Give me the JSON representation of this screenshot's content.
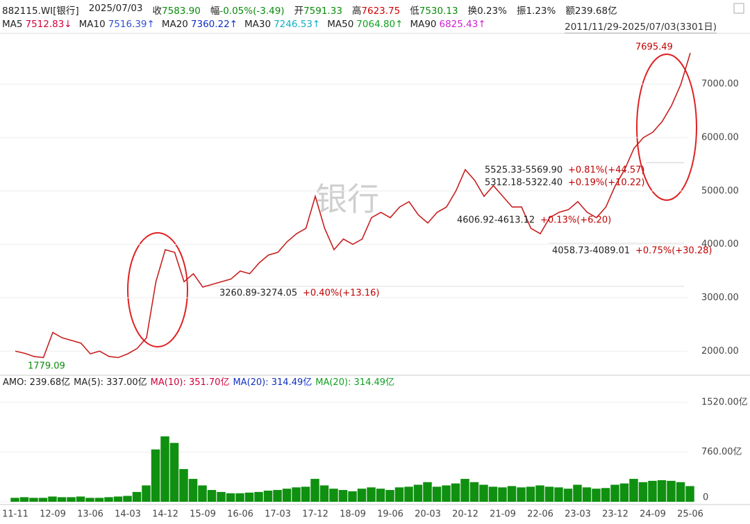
{
  "header": {
    "code": "882115.WI[银行]",
    "date": "2025/07/03",
    "fields": [
      {
        "label": "收",
        "value": "7583.90",
        "color": "#0a8a0a"
      },
      {
        "label": "幅",
        "value": "-0.05%(-3.49)",
        "color": "#0a8a0a"
      },
      {
        "label": "开",
        "value": "7591.33",
        "color": "#0a8a0a"
      },
      {
        "label": "高",
        "value": "7623.75",
        "color": "#d00000"
      },
      {
        "label": "低",
        "value": "7530.13",
        "color": "#0a8a0a"
      },
      {
        "label": "换",
        "value": "0.23%",
        "color": "#222222"
      },
      {
        "label": "振",
        "value": "1.23%",
        "color": "#222222"
      },
      {
        "label": "额",
        "value": "239.68亿",
        "color": "#222222"
      }
    ],
    "ma": [
      {
        "label": "MA5",
        "value": "7512.83↓",
        "color": "#d0003a"
      },
      {
        "label": "MA10",
        "value": "7516.39↑",
        "color": "#3050d0"
      },
      {
        "label": "MA20",
        "value": "7360.22↑",
        "color": "#1030c0"
      },
      {
        "label": "MA30",
        "value": "7246.53↑",
        "color": "#10b0c0"
      },
      {
        "label": "MA50",
        "value": "7064.80↑",
        "color": "#10a020"
      },
      {
        "label": "MA90",
        "value": "6825.43↑",
        "color": "#d020d0"
      }
    ],
    "range": "2011/11/29-2025/07/03(3301日)",
    "watermark": "银行"
  },
  "chart_data": [
    {
      "type": "line",
      "categories": [
        "11-11",
        null,
        null,
        null,
        "12-09",
        null,
        null,
        null,
        "13-06",
        null,
        null,
        null,
        "14-03",
        null,
        null,
        null,
        "14-12",
        null,
        null,
        null,
        "15-09",
        null,
        null,
        null,
        "16-06",
        null,
        null,
        null,
        "17-03",
        null,
        null,
        null,
        "17-12",
        null,
        null,
        null,
        "18-09",
        null,
        null,
        null,
        "19-06",
        null,
        null,
        null,
        "20-03",
        null,
        null,
        null,
        "20-12",
        null,
        null,
        null,
        "21-09",
        null,
        null,
        null,
        "22-06",
        null,
        null,
        null,
        "23-03",
        null,
        null,
        null,
        "23-12",
        null,
        null,
        null,
        "24-09",
        null,
        null,
        null,
        "25-06"
      ],
      "series": [
        {
          "name": "收",
          "color": "#c81e1e",
          "values": [
            2000,
            1960,
            1900,
            1880,
            2350,
            2250,
            2200,
            2150,
            1950,
            2000,
            1900,
            1880,
            1950,
            2050,
            2250,
            3300,
            3900,
            3850,
            3300,
            3450,
            3200,
            3250,
            3300,
            3350,
            3500,
            3450,
            3650,
            3800,
            3850,
            4050,
            4200,
            4300,
            4900,
            4300,
            3900,
            4100,
            4000,
            4100,
            4500,
            4600,
            4500,
            4700,
            4800,
            4550,
            4400,
            4600,
            4700,
            5000,
            5400,
            5200,
            4900,
            5100,
            4900,
            4700,
            4700,
            4300,
            4200,
            4500,
            4600,
            4650,
            4800,
            4600,
            4500,
            4700,
            5100,
            5400,
            5800,
            6000,
            6100,
            6300,
            6600,
            7000,
            7583.9
          ]
        }
      ],
      "ylim": [
        1600,
        7900
      ],
      "yticks": [
        {
          "value": 2000,
          "label": "2000.00"
        },
        {
          "value": 3000,
          "label": "3000.00"
        },
        {
          "value": 4000,
          "label": "4000.00"
        },
        {
          "value": 5000,
          "label": "5000.00"
        },
        {
          "value": 6000,
          "label": "6000.00"
        },
        {
          "value": 7000,
          "label": "7000.00"
        }
      ],
      "annotations": [
        {
          "text": "7695.49",
          "color": "#c00000"
        },
        {
          "text": "1779.09",
          "color": "#0a8a0a"
        },
        {
          "text": "3260.89-3274.05",
          "color": "#222222"
        },
        {
          "text": "+0.40%(+13.16)",
          "color": "#c00000"
        },
        {
          "text": "5525.33-5569.90",
          "color": "#222222"
        },
        {
          "text": "+0.81%(+44.57)",
          "color": "#c00000"
        },
        {
          "text": "5312.18-5322.40",
          "color": "#222222"
        },
        {
          "text": "+0.19%(+10.22)",
          "color": "#c00000"
        },
        {
          "text": "4606.92-4613.12",
          "color": "#222222"
        },
        {
          "text": "+0.13%(+6.20)",
          "color": "#c00000"
        },
        {
          "text": "4058.73-4089.01",
          "color": "#222222"
        },
        {
          "text": "+0.75%(+30.28)",
          "color": "#c00000"
        }
      ]
    },
    {
      "type": "bar",
      "legend": [
        {
          "text": "AMO: 239.68亿",
          "color": "#222222"
        },
        {
          "text": "MA(5): 337.00亿",
          "color": "#222222"
        },
        {
          "text": "MA(10): 351.70亿",
          "color": "#d0003a"
        },
        {
          "text": "MA(20): 314.49亿",
          "color": "#1030c0"
        },
        {
          "text": "MA(20): 314.49亿",
          "color": "#10a020"
        }
      ],
      "color": "#109010",
      "values": [
        60,
        70,
        60,
        60,
        80,
        70,
        70,
        80,
        60,
        60,
        70,
        80,
        90,
        150,
        250,
        800,
        1000,
        900,
        500,
        350,
        250,
        180,
        150,
        130,
        130,
        140,
        150,
        170,
        180,
        200,
        220,
        230,
        350,
        250,
        200,
        180,
        160,
        200,
        220,
        200,
        180,
        220,
        230,
        260,
        300,
        230,
        250,
        280,
        350,
        300,
        260,
        230,
        220,
        240,
        220,
        230,
        250,
        230,
        220,
        200,
        260,
        220,
        200,
        210,
        260,
        280,
        350,
        300,
        320,
        330,
        320,
        300,
        239.68
      ],
      "ylim": [
        0,
        1700
      ],
      "yticks": [
        0,
        {
          "value": 760,
          "label": "760.00亿"
        },
        {
          "value": 1520,
          "label": "1520.00亿"
        }
      ]
    }
  ]
}
